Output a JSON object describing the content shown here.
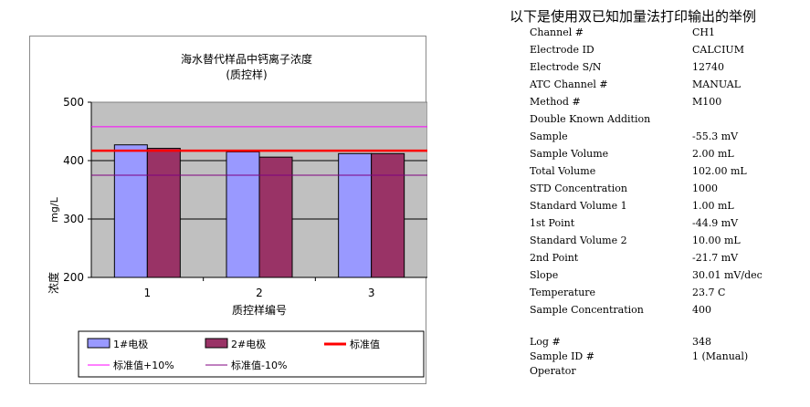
{
  "chart_data": {
    "type": "bar",
    "title": "海水替代样品中钙离子浓度",
    "subtitle": "(质控样)",
    "xlabel": "质控样编号",
    "ylabel": "浓度",
    "yunit": "mg/L",
    "categories": [
      "1",
      "2",
      "3"
    ],
    "series": [
      {
        "name": "1#电极",
        "values": [
          427,
          415,
          412
        ],
        "color": "#9999ff"
      },
      {
        "name": "2#电极",
        "values": [
          421,
          406,
          412
        ],
        "color": "#993366"
      }
    ],
    "reference_lines": [
      {
        "name": "标准值",
        "value": 417,
        "color": "#ff0000"
      },
      {
        "name": "标准值+10%",
        "value": 458,
        "color": "#ff00ff"
      },
      {
        "name": "标准值-10%",
        "value": 375,
        "color": "#800080"
      }
    ],
    "ylim": [
      200,
      500
    ],
    "yticks": [
      200,
      300,
      400,
      500
    ],
    "plot_background": "#c0c0c0",
    "grid": true,
    "legend_position": "bottom"
  },
  "report": {
    "heading": "以下是使用双已知加量法打印输出的举例",
    "rows": [
      {
        "label": "Channel #",
        "value": "CH1"
      },
      {
        "label": "Electrode ID",
        "value": "CALCIUM"
      },
      {
        "label": "Electrode S/N",
        "value": "12740"
      },
      {
        "label": "ATC Channel #",
        "value": "MANUAL"
      },
      {
        "label": "Method #",
        "value": "M100"
      },
      {
        "label": "Double Known Addition",
        "value": ""
      },
      {
        "label": "Sample",
        "value": "-55.3 mV"
      },
      {
        "label": "Sample Volume",
        "value": "2.00 mL"
      },
      {
        "label": "Total Volume",
        "value": "102.00 mL"
      },
      {
        "label": "STD Concentration",
        "value": "1000"
      },
      {
        "label": "Standard Volume 1",
        "value": "1.00 mL"
      },
      {
        "label": "1st Point",
        "value": "-44.9 mV"
      },
      {
        "label": "Standard Volume 2",
        "value": "10.00 mL"
      },
      {
        "label": "2nd Point",
        "value": "-21.7 mV"
      },
      {
        "label": "Slope",
        "value": "30.01 mV/dec"
      },
      {
        "label": "Temperature",
        "value": "23.7 C"
      },
      {
        "label": "Sample Concentration",
        "value": "400"
      }
    ],
    "log_rows": [
      {
        "label": "Log #",
        "value": "348"
      },
      {
        "label": "Sample ID #",
        "value": "1 (Manual)"
      },
      {
        "label": "Operator",
        "value": ""
      }
    ]
  }
}
